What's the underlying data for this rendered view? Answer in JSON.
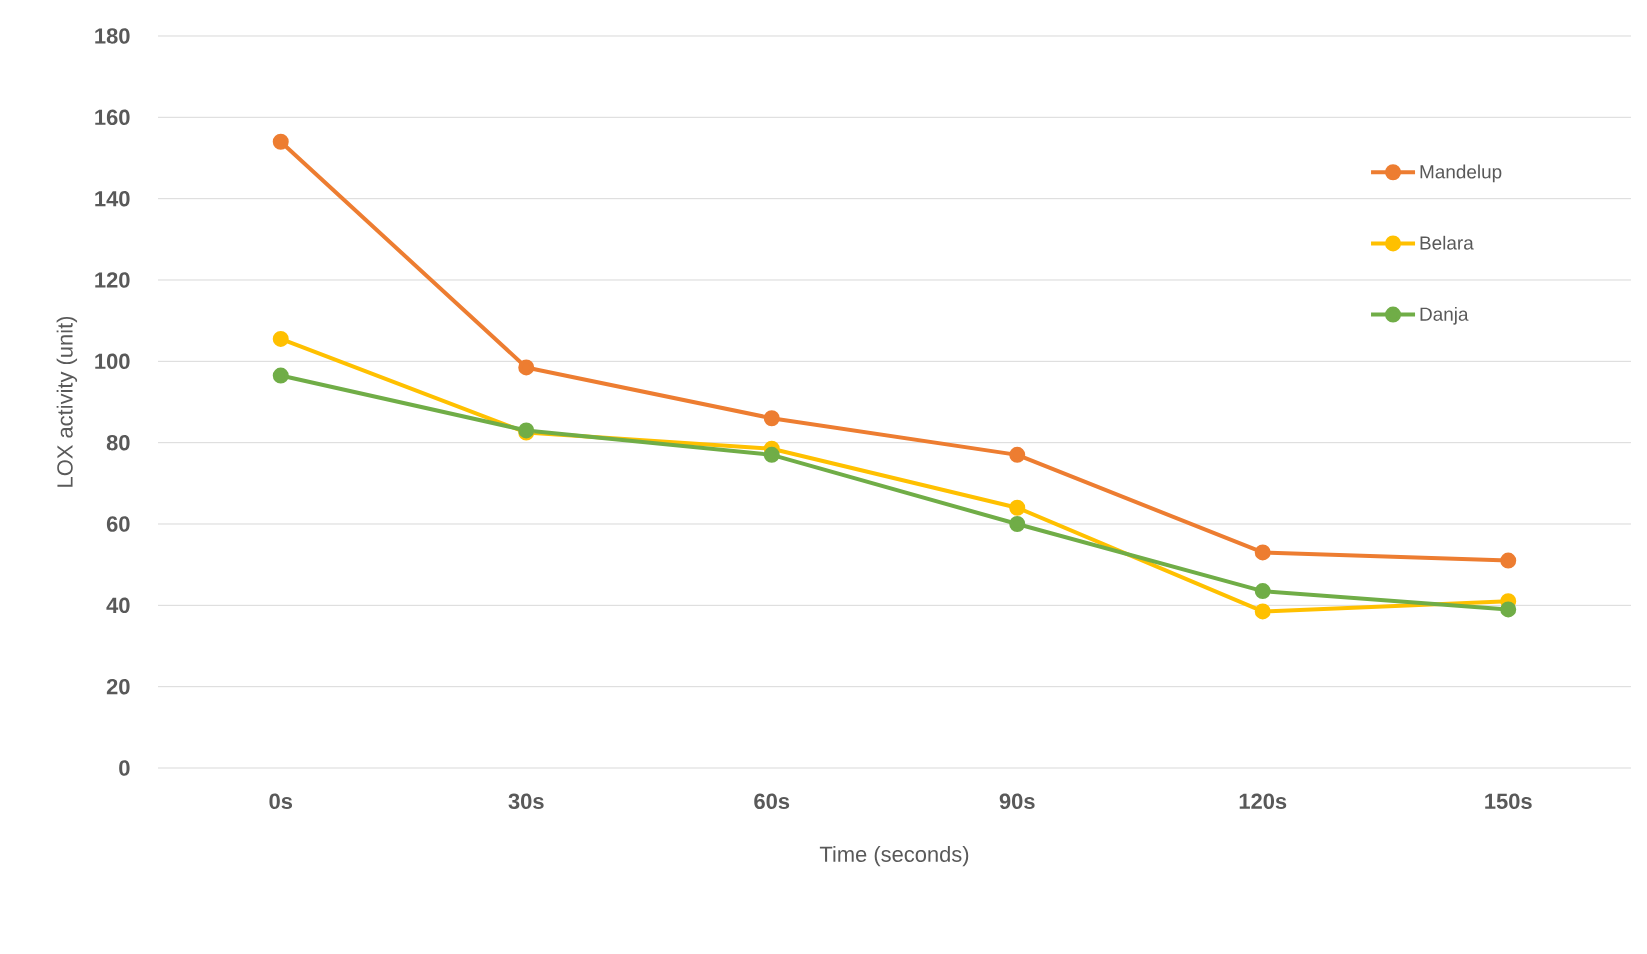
{
  "chart_data": {
    "type": "line",
    "xlabel": "Time (seconds)",
    "ylabel": "LOX activity (unit)",
    "categories": [
      "0s",
      "30s",
      "60s",
      "90s",
      "120s",
      "150s"
    ],
    "series": [
      {
        "name": "Mandelup",
        "color": "#ed7d31",
        "values": [
          154,
          98.5,
          86,
          77,
          53,
          51
        ]
      },
      {
        "name": "Belara",
        "color": "#ffc000",
        "values": [
          105.5,
          82.5,
          78.5,
          64,
          38.5,
          41
        ]
      },
      {
        "name": "Danja",
        "color": "#70ad47",
        "values": [
          96.5,
          83,
          77,
          60,
          43.5,
          39
        ]
      }
    ],
    "ylim": [
      0,
      180
    ],
    "yticks": [
      0,
      20,
      40,
      60,
      80,
      100,
      120,
      140,
      160,
      180
    ],
    "grid": "y",
    "legend": "top right",
    "marker": "circle",
    "line_style": "solid"
  }
}
